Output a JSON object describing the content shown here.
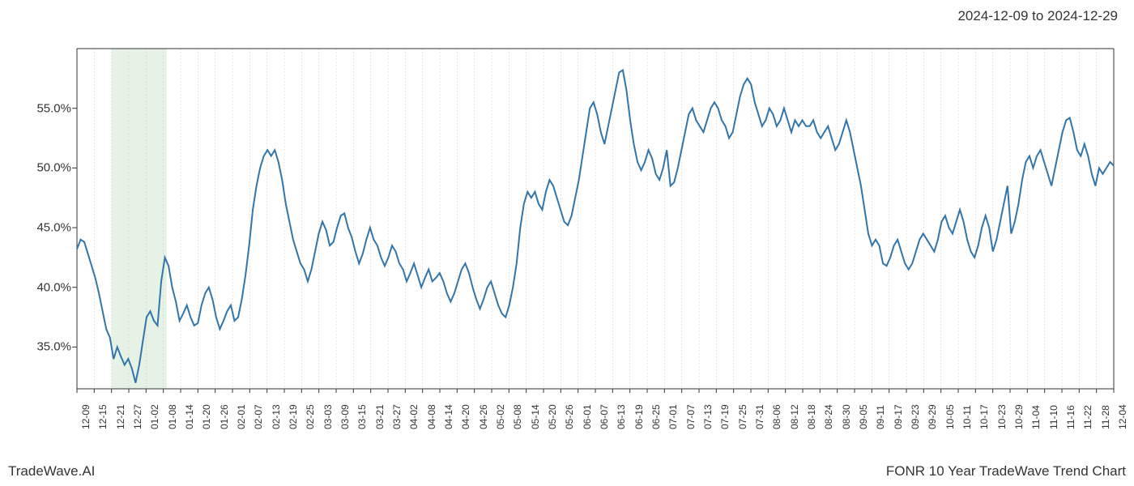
{
  "header": {
    "date_range": "2024-12-09 to 2024-12-29"
  },
  "footer": {
    "left": "TradeWave.AI",
    "right": "FONR 10 Year TradeWave Trend Chart"
  },
  "chart": {
    "type": "line",
    "line_color": "#3275aa",
    "line_width": 2,
    "background_color": "#ffffff",
    "axis_color": "#333333",
    "grid_color": "#cccccc",
    "highlight_fill": "#d6e9d6",
    "highlight_opacity": 0.6,
    "ylim": [
      31.5,
      60
    ],
    "ytick_values": [
      35.0,
      40.0,
      45.0,
      50.0,
      55.0
    ],
    "ytick_labels": [
      "35.0%",
      "40.0%",
      "45.0%",
      "50.0%",
      "55.0%"
    ],
    "x_labels": [
      "12-09",
      "12-15",
      "12-21",
      "12-27",
      "01-02",
      "01-08",
      "01-14",
      "01-20",
      "01-26",
      "02-01",
      "02-07",
      "02-13",
      "02-19",
      "02-25",
      "03-03",
      "03-09",
      "03-15",
      "03-21",
      "03-27",
      "04-02",
      "04-08",
      "04-14",
      "04-20",
      "04-26",
      "05-02",
      "05-08",
      "05-14",
      "05-20",
      "05-26",
      "06-01",
      "06-07",
      "06-13",
      "06-19",
      "06-25",
      "07-01",
      "07-07",
      "07-13",
      "07-19",
      "07-25",
      "07-31",
      "08-06",
      "08-12",
      "08-18",
      "08-24",
      "08-30",
      "09-05",
      "09-11",
      "09-17",
      "09-23",
      "09-29",
      "10-05",
      "10-11",
      "10-17",
      "10-23",
      "10-29",
      "11-04",
      "11-10",
      "11-16",
      "11-22",
      "11-28",
      "12-04"
    ],
    "highlight_range": [
      2,
      5.2
    ],
    "x_count": 61,
    "series": [
      43.2,
      44.0,
      43.8,
      42.8,
      41.8,
      40.8,
      39.5,
      38.0,
      36.5,
      35.8,
      34.0,
      35.0,
      34.2,
      33.5,
      34.0,
      33.2,
      32.0,
      33.5,
      35.5,
      37.5,
      38.0,
      37.2,
      36.8,
      40.5,
      42.5,
      41.8,
      40.0,
      38.8,
      37.2,
      37.8,
      38.5,
      37.5,
      36.8,
      37.0,
      38.5,
      39.5,
      40.0,
      39.0,
      37.5,
      36.5,
      37.2,
      38.0,
      38.5,
      37.2,
      37.5,
      39.0,
      41.0,
      43.5,
      46.5,
      48.5,
      50.0,
      51.0,
      51.5,
      51.0,
      51.5,
      50.5,
      49.0,
      47.0,
      45.5,
      44.0,
      43.0,
      42.0,
      41.5,
      40.5,
      41.5,
      43.0,
      44.5,
      45.5,
      44.8,
      43.5,
      43.8,
      45.0,
      46.0,
      46.2,
      45.0,
      44.2,
      43.0,
      42.0,
      42.8,
      44.0,
      45.0,
      44.0,
      43.5,
      42.5,
      41.8,
      42.5,
      43.5,
      43.0,
      42.0,
      41.5,
      40.5,
      41.2,
      42.0,
      41.0,
      40.0,
      40.8,
      41.5,
      40.5,
      40.8,
      41.2,
      40.5,
      39.5,
      38.8,
      39.5,
      40.5,
      41.5,
      42.0,
      41.2,
      40.0,
      39.0,
      38.2,
      39.0,
      40.0,
      40.5,
      39.5,
      38.5,
      37.8,
      37.5,
      38.5,
      40.0,
      42.0,
      45.0,
      47.0,
      48.0,
      47.5,
      48.0,
      47.0,
      46.5,
      48.0,
      49.0,
      48.5,
      47.5,
      46.5,
      45.5,
      45.2,
      46.0,
      47.5,
      49.0,
      51.0,
      53.0,
      55.0,
      55.5,
      54.5,
      53.0,
      52.0,
      53.5,
      55.0,
      56.5,
      58.0,
      58.2,
      56.5,
      54.0,
      52.0,
      50.5,
      49.8,
      50.5,
      51.5,
      50.8,
      49.5,
      49.0,
      50.0,
      51.5,
      48.5,
      48.8,
      50.0,
      51.5,
      53.0,
      54.5,
      55.0,
      54.0,
      53.5,
      53.0,
      54.0,
      55.0,
      55.5,
      55.0,
      54.0,
      53.5,
      52.5,
      53.0,
      54.5,
      56.0,
      57.0,
      57.5,
      57.0,
      55.5,
      54.5,
      53.5,
      54.0,
      55.0,
      54.5,
      53.5,
      54.0,
      55.0,
      54.0,
      53.0,
      54.0,
      53.5,
      54.0,
      53.5,
      53.5,
      54.0,
      53.0,
      52.5,
      53.0,
      53.5,
      52.5,
      51.5,
      52.0,
      53.0,
      54.0,
      53.0,
      51.5,
      50.0,
      48.5,
      46.5,
      44.5,
      43.5,
      44.0,
      43.5,
      42.0,
      41.8,
      42.5,
      43.5,
      44.0,
      43.0,
      42.0,
      41.5,
      42.0,
      43.0,
      44.0,
      44.5,
      44.0,
      43.5,
      43.0,
      44.0,
      45.5,
      46.0,
      45.0,
      44.5,
      45.5,
      46.5,
      45.5,
      44.0,
      43.0,
      42.5,
      43.5,
      45.0,
      46.0,
      45.0,
      43.0,
      44.0,
      45.5,
      47.0,
      48.5,
      44.5,
      45.5,
      47.0,
      49.0,
      50.5,
      51.0,
      50.0,
      51.0,
      51.5,
      50.5,
      49.5,
      48.5,
      50.0,
      51.5,
      53.0,
      54.0,
      54.2,
      53.0,
      51.5,
      51.0,
      52.0,
      51.0,
      49.5,
      48.5,
      50.0,
      49.5,
      50.0,
      50.5,
      50.2
    ]
  }
}
